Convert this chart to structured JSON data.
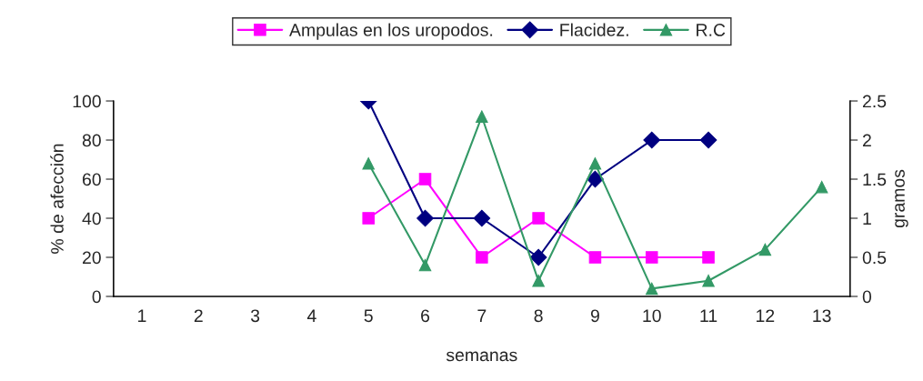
{
  "chart_data": {
    "type": "line",
    "xlabel": "semanas",
    "ylabel": "% de afección",
    "y2label": "gramos",
    "categories": [
      "1",
      "2",
      "3",
      "4",
      "5",
      "6",
      "7",
      "8",
      "9",
      "10",
      "11",
      "12",
      "13"
    ],
    "series": [
      {
        "name": "Ampulas en los uropodos.",
        "color": "#ff00ff",
        "marker": "square",
        "values": [
          null,
          null,
          null,
          null,
          40,
          60,
          20,
          40,
          20,
          20,
          20,
          null,
          null
        ]
      },
      {
        "name": "Flacidez.",
        "color": "#000080",
        "marker": "diamond",
        "values": [
          null,
          null,
          null,
          null,
          100,
          40,
          40,
          20,
          60,
          80,
          80,
          null,
          null
        ]
      },
      {
        "name": "R.C",
        "color": "#339966",
        "marker": "triangle",
        "axis": "y2",
        "values": [
          null,
          null,
          null,
          null,
          1.7,
          0.4,
          2.3,
          0.2,
          1.7,
          0.1,
          0.2,
          0.6,
          1.4
        ]
      }
    ],
    "ylim": [
      0,
      100
    ],
    "yticks": [
      0,
      20,
      40,
      60,
      80,
      100
    ],
    "y2lim": [
      0,
      2.5
    ],
    "y2ticks": [
      0,
      0.5,
      1,
      1.5,
      2,
      2.5
    ],
    "grid": false,
    "legend": "top",
    "line_style": "solid"
  }
}
